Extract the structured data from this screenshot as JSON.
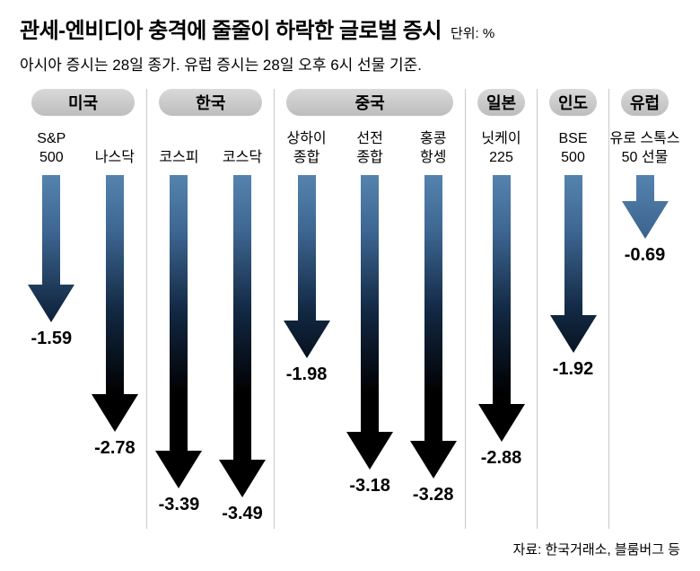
{
  "title": "관세-엔비디아 충격에 줄줄이 하락한 글로벌 증시",
  "unit_label": "단위: %",
  "subtitle": "아시아 증시는 28일 종가. 유럽 증시는 28일 오후 6시 선물 기준.",
  "source": "자료: 한국거래소, 블룸버그 등",
  "colors": {
    "arrow_top": "#5583ae",
    "arrow_upper_mid": "#3e6793",
    "arrow_lower_mid": "#122843",
    "arrow_bottom": "#000000",
    "pill_bg": "#c9c9c9",
    "divider": "#c9c9c9",
    "text": "#000000",
    "background": "#ffffff"
  },
  "chart_data": {
    "type": "bar",
    "title": "관세-엔비디아 충격에 줄줄이 하락한 글로벌 증시",
    "unit": "%",
    "orientation": "downward-arrows",
    "ylim": [
      -3.6,
      0
    ],
    "categories": [
      "S&P 500",
      "나스닥",
      "코스피",
      "코스닥",
      "상하이 종합",
      "선전 종합",
      "홍콩 항셍",
      "닛케이 225",
      "BSE 500",
      "유로 스톡스 50 선물"
    ],
    "values": [
      -1.59,
      -2.78,
      -3.39,
      -3.49,
      -1.98,
      -3.18,
      -3.28,
      -2.88,
      -1.92,
      -0.69
    ],
    "groups": [
      {
        "name": "미국",
        "items": [
          {
            "label": "S&P\n500",
            "value": -1.59
          },
          {
            "label": "나스닥",
            "value": -2.78
          }
        ]
      },
      {
        "name": "한국",
        "items": [
          {
            "label": "코스피",
            "value": -3.39
          },
          {
            "label": "코스닥",
            "value": -3.49
          }
        ]
      },
      {
        "name": "중국",
        "items": [
          {
            "label": "상하이\n종합",
            "value": -1.98
          },
          {
            "label": "선전\n종합",
            "value": -3.18
          },
          {
            "label": "홍콩\n항셍",
            "value": -3.28
          }
        ]
      },
      {
        "name": "일본",
        "items": [
          {
            "label": "닛케이\n225",
            "value": -2.88
          }
        ]
      },
      {
        "name": "인도",
        "items": [
          {
            "label": "BSE\n500",
            "value": -1.92
          }
        ]
      },
      {
        "name": "유럽",
        "items": [
          {
            "label": "유로 스톡스\n50 선물",
            "value": -0.69
          }
        ]
      }
    ]
  }
}
